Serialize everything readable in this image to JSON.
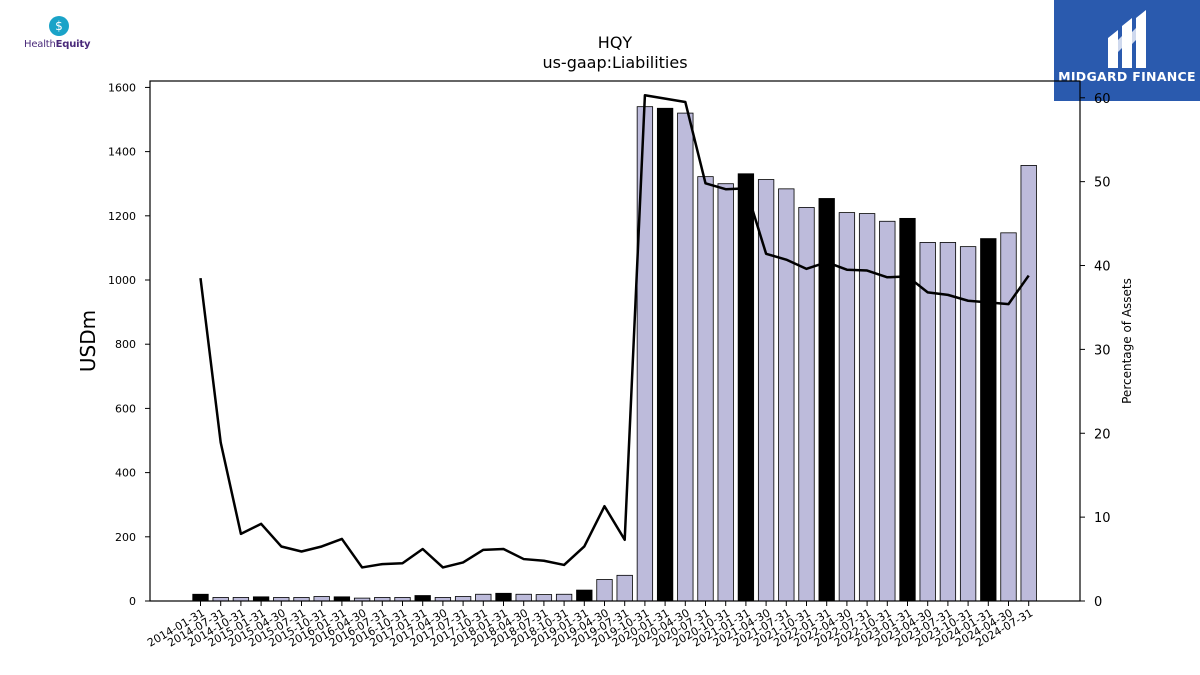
{
  "branding": {
    "left_logo_part1": "Health",
    "left_logo_part2": "Equity",
    "left_logo_icon": "dollar-drop-icon",
    "right_logo_text": "MIDGARD FINANCE",
    "right_logo_icon": "midgard-m-icon",
    "right_logo_bg": "#2a5aae"
  },
  "chart_data": {
    "type": "bar",
    "title": "HQY",
    "subtitle": "us-gaap:Liabilities",
    "ylabel": "USDm",
    "y2label": "Percentage of Assets",
    "ylim": [
      0,
      1620
    ],
    "y2lim": [
      0,
      62
    ],
    "yticks": [
      0,
      200,
      400,
      600,
      800,
      1000,
      1200,
      1400,
      1600
    ],
    "y2ticks": [
      0,
      10,
      20,
      30,
      40,
      50,
      60
    ],
    "grid": false,
    "colors": {
      "bar": "#bdbbdb",
      "highlight": "#000000",
      "line": "#000000"
    },
    "categories": [
      "2014-01-31",
      "2014-07-31",
      "2014-10-31",
      "2015-01-31",
      "2015-04-30",
      "2015-07-31",
      "2015-10-31",
      "2016-01-31",
      "2016-04-30",
      "2016-07-31",
      "2016-10-31",
      "2017-01-31",
      "2017-04-30",
      "2017-07-31",
      "2017-10-31",
      "2018-01-31",
      "2018-04-30",
      "2018-07-31",
      "2018-10-31",
      "2019-01-31",
      "2019-04-30",
      "2019-07-31",
      "2019-10-31",
      "2020-01-31",
      "2020-04-30",
      "2020-07-31",
      "2020-10-31",
      "2021-01-31",
      "2021-04-30",
      "2021-07-31",
      "2021-10-31",
      "2022-01-31",
      "2022-04-30",
      "2022-07-31",
      "2022-10-31",
      "2023-01-31",
      "2023-04-30",
      "2023-07-31",
      "2023-10-31",
      "2024-01-31",
      "2024-04-30",
      "2024-07-31"
    ],
    "highlighted": [
      true,
      false,
      false,
      true,
      false,
      false,
      false,
      true,
      false,
      false,
      false,
      true,
      false,
      false,
      false,
      true,
      false,
      false,
      false,
      true,
      false,
      false,
      false,
      true,
      false,
      false,
      false,
      true,
      false,
      false,
      false,
      true,
      false,
      false,
      false,
      true,
      false,
      false,
      false,
      true,
      false,
      false
    ],
    "series": [
      {
        "name": "USDm",
        "type": "bar",
        "values": [
          21,
          11,
          11,
          13,
          11,
          11,
          14,
          13,
          9,
          11,
          11,
          17,
          11,
          14,
          21,
          24,
          21,
          20,
          21,
          34,
          67,
          80,
          1540,
          1535,
          1520,
          1322,
          1300,
          1331,
          1313,
          1284,
          1226,
          1254,
          1210,
          1207,
          1183,
          1192,
          1117,
          1117,
          1104,
          1129,
          1147,
          1357
        ]
      },
      {
        "name": "Percentage of Assets",
        "type": "line",
        "axis": "right",
        "values": [
          38.5,
          18.9,
          8.0,
          9.2,
          6.5,
          5.9,
          6.5,
          7.4,
          4.0,
          4.4,
          4.5,
          6.2,
          4.0,
          4.6,
          6.1,
          6.2,
          5.0,
          4.8,
          4.3,
          6.5,
          11.3,
          7.3,
          60.3,
          59.9,
          59.5,
          49.8,
          49.1,
          49.2,
          41.4,
          40.7,
          39.6,
          40.4,
          39.5,
          39.4,
          38.6,
          38.7,
          36.8,
          36.5,
          35.8,
          35.6,
          35.4,
          38.8
        ]
      }
    ]
  }
}
